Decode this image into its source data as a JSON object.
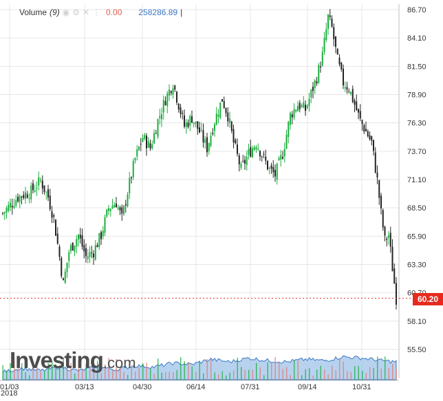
{
  "legend": {
    "title": "Volume",
    "count": "(9)",
    "change": "0.00",
    "value": "258286.89",
    "cursor": "|"
  },
  "price_badge": "60.20",
  "logo": {
    "word": "Investing",
    "suffix": ".com"
  },
  "year_label": "2018",
  "colors": {
    "up": "#1aae3c",
    "down": "#222222",
    "grid": "#e6e6e6",
    "price_line": "#e52b20",
    "volume_area": "#9fc3ea",
    "volume_line": "#3a77c4"
  },
  "chart_data": {
    "type": "candlestick",
    "y_ticks": [
      "86.70",
      "84.10",
      "81.50",
      "78.90",
      "76.30",
      "73.70",
      "71.10",
      "68.50",
      "65.90",
      "63.30",
      "60.70",
      "58.10",
      "55.50"
    ],
    "ylim": [
      55.5,
      86.7
    ],
    "x_ticks": [
      "01/03",
      "03/13",
      "04/30",
      "06/14",
      "07/31",
      "09/14",
      "10/31"
    ],
    "last_price": 60.2,
    "close_trend": [
      [
        0,
        68.0
      ],
      [
        8,
        69.5
      ],
      [
        15,
        70.0
      ],
      [
        20,
        71.0
      ],
      [
        24,
        69.5
      ],
      [
        27,
        67.5
      ],
      [
        30,
        64.0
      ],
      [
        32,
        61.5
      ],
      [
        35,
        64.5
      ],
      [
        40,
        66.0
      ],
      [
        44,
        64.0
      ],
      [
        48,
        64.5
      ],
      [
        52,
        66.0
      ],
      [
        56,
        68.5
      ],
      [
        60,
        69.0
      ],
      [
        63,
        67.5
      ],
      [
        66,
        70.0
      ],
      [
        70,
        73.0
      ],
      [
        74,
        75.0
      ],
      [
        78,
        74.0
      ],
      [
        82,
        76.5
      ],
      [
        86,
        78.5
      ],
      [
        90,
        80.0
      ],
      [
        93,
        78.0
      ],
      [
        96,
        76.0
      ],
      [
        100,
        76.8
      ],
      [
        104,
        75.5
      ],
      [
        108,
        74.0
      ],
      [
        112,
        76.5
      ],
      [
        116,
        78.5
      ],
      [
        119,
        77.0
      ],
      [
        122,
        74.5
      ],
      [
        126,
        72.0
      ],
      [
        130,
        73.5
      ],
      [
        134,
        74.5
      ],
      [
        138,
        73.0
      ],
      [
        141,
        72.0
      ],
      [
        144,
        71.5
      ],
      [
        148,
        73.5
      ],
      [
        152,
        77.0
      ],
      [
        156,
        78.0
      ],
      [
        160,
        77.5
      ],
      [
        163,
        79.0
      ],
      [
        166,
        80.5
      ],
      [
        169,
        82.5
      ],
      [
        172,
        86.0
      ],
      [
        174,
        85.0
      ],
      [
        177,
        82.0
      ],
      [
        180,
        80.0
      ],
      [
        183,
        79.5
      ],
      [
        186,
        78.0
      ],
      [
        189,
        76.5
      ],
      [
        192,
        75.5
      ],
      [
        195,
        74.5
      ],
      [
        198,
        71.0
      ],
      [
        200,
        68.0
      ],
      [
        202,
        65.5
      ],
      [
        204,
        66.0
      ],
      [
        206,
        63.0
      ],
      [
        208,
        60.2
      ]
    ],
    "volume_trend": [
      [
        0,
        0.3
      ],
      [
        10,
        0.45
      ],
      [
        20,
        0.35
      ],
      [
        30,
        0.5
      ],
      [
        40,
        0.35
      ],
      [
        50,
        0.5
      ],
      [
        60,
        0.4
      ],
      [
        70,
        0.55
      ],
      [
        80,
        0.5
      ],
      [
        90,
        0.65
      ],
      [
        100,
        0.6
      ],
      [
        110,
        0.8
      ],
      [
        120,
        0.7
      ],
      [
        130,
        0.85
      ],
      [
        140,
        0.75
      ],
      [
        150,
        0.7
      ],
      [
        160,
        0.8
      ],
      [
        170,
        0.75
      ],
      [
        180,
        0.9
      ],
      [
        190,
        0.85
      ],
      [
        200,
        0.75
      ],
      [
        208,
        0.7
      ]
    ]
  }
}
